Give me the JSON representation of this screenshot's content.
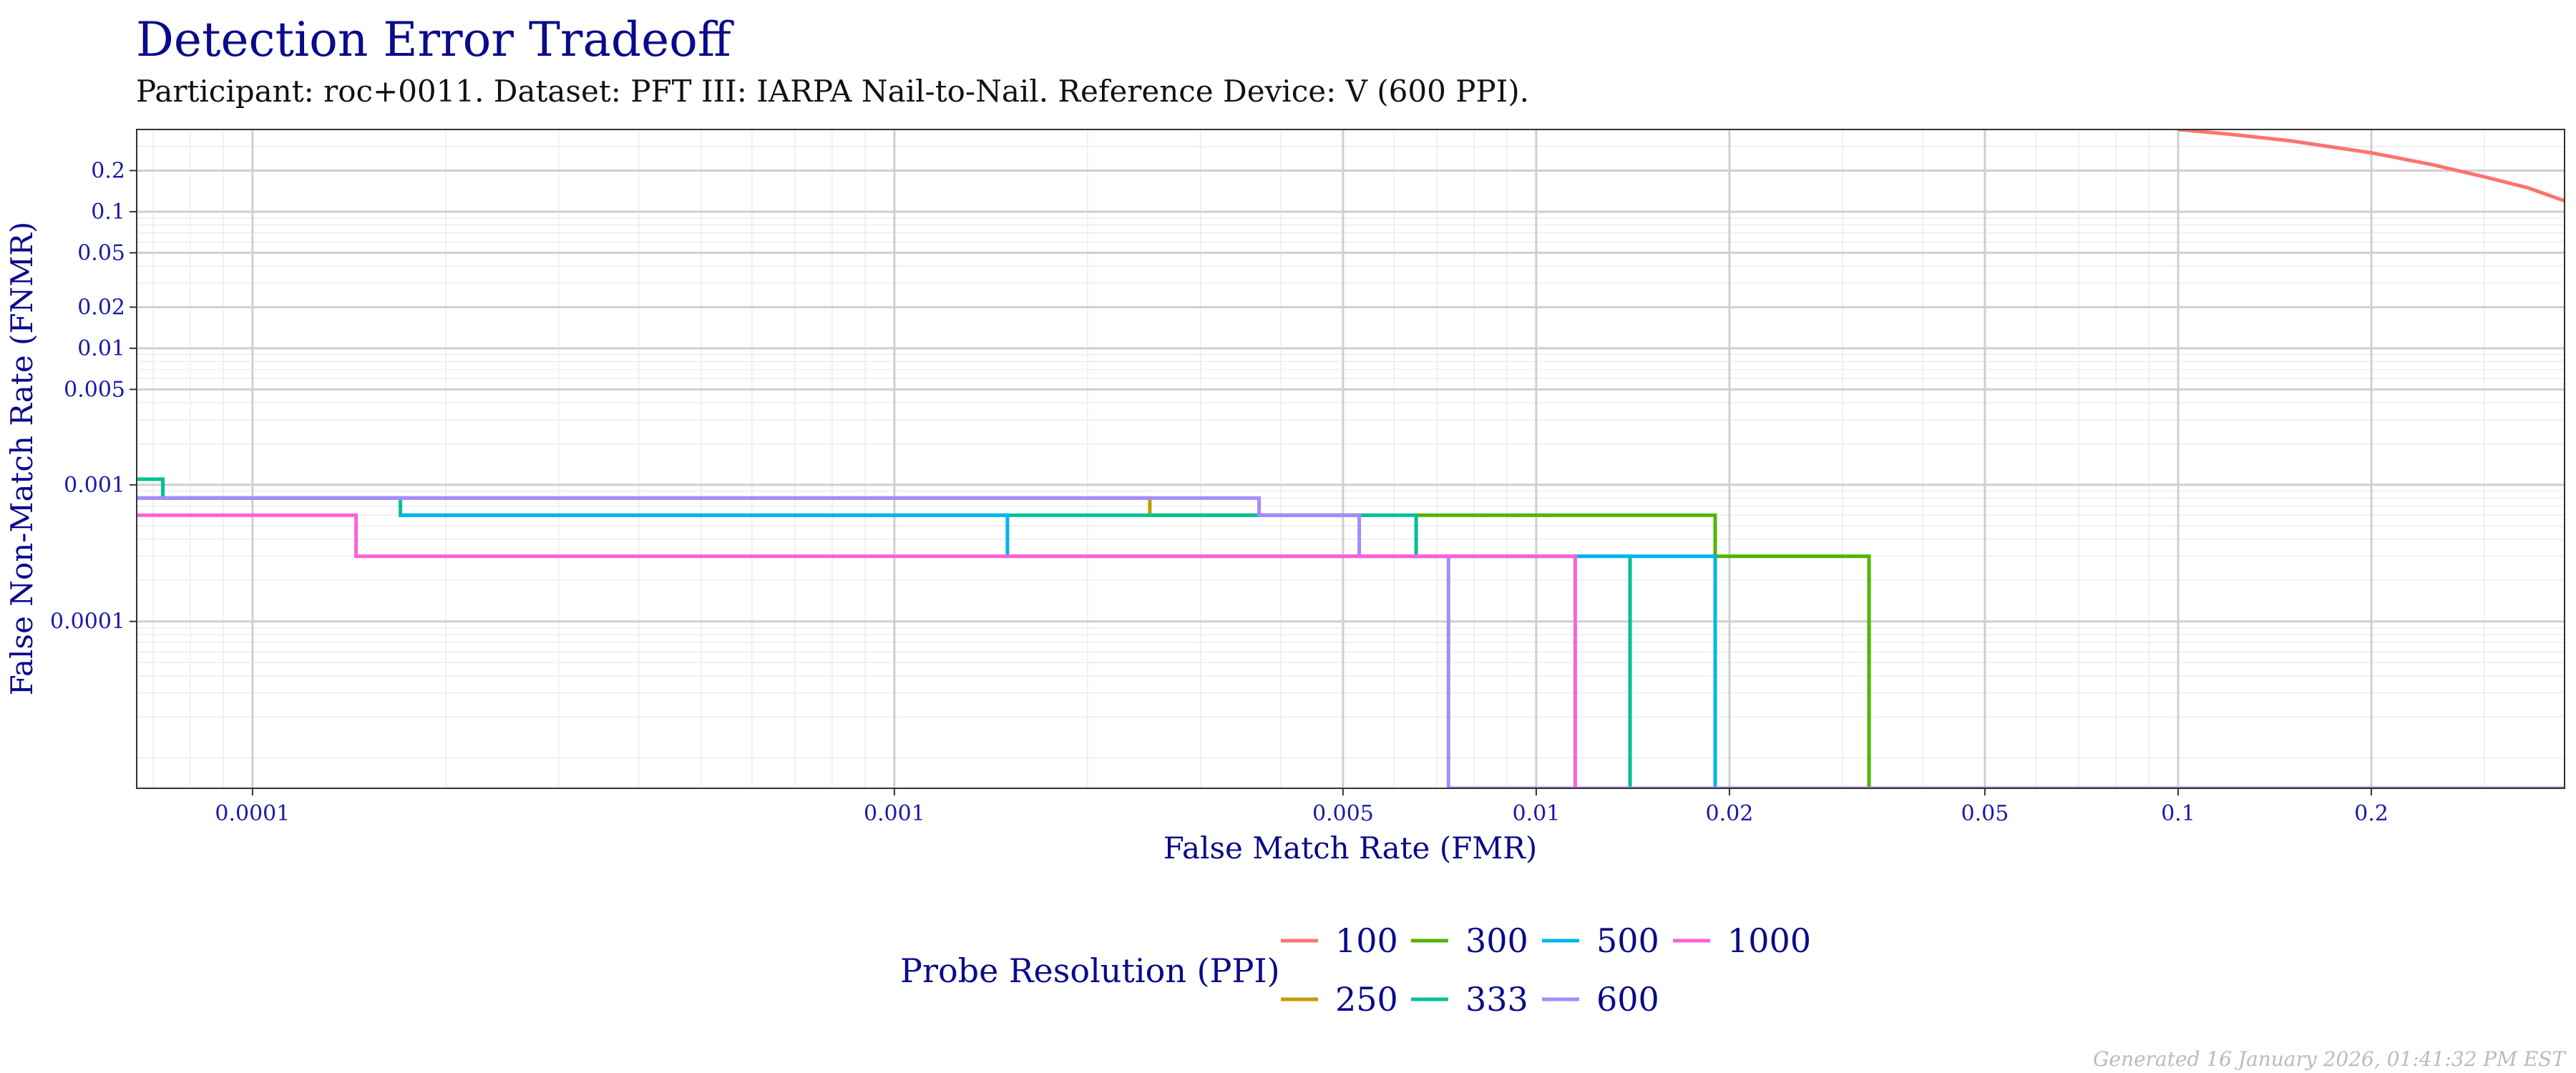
{
  "chart_data": {
    "type": "line",
    "title": "Detection Error Tradeoff",
    "subtitle": "Participant: roc+0011. Dataset: PFT III: IARPA Nail-to-Nail. Reference Device: V (600 PPI).",
    "xlabel": "False Match Rate (FMR)",
    "ylabel": "False Non-Match Rate (FNMR)",
    "x_scale": "log",
    "y_scale": "log",
    "xlim": [
      6.6e-05,
      0.4
    ],
    "ylim": [
      6e-06,
      0.4
    ],
    "x_ticks": [
      {
        "value": 0.0001,
        "label": "0.0001"
      },
      {
        "value": 0.001,
        "label": "0.001"
      },
      {
        "value": 0.005,
        "label": "0.005"
      },
      {
        "value": 0.01,
        "label": "0.01"
      },
      {
        "value": 0.02,
        "label": "0.02"
      },
      {
        "value": 0.05,
        "label": "0.05"
      },
      {
        "value": 0.1,
        "label": "0.1"
      },
      {
        "value": 0.2,
        "label": "0.2"
      }
    ],
    "y_ticks": [
      {
        "value": 0.2,
        "label": "0.2"
      },
      {
        "value": 0.1,
        "label": "0.1"
      },
      {
        "value": 0.05,
        "label": "0.05"
      },
      {
        "value": 0.02,
        "label": "0.02"
      },
      {
        "value": 0.01,
        "label": "0.01"
      },
      {
        "value": 0.005,
        "label": "0.005"
      },
      {
        "value": 0.001,
        "label": "0.001"
      },
      {
        "value": 0.0001,
        "label": "0.0001"
      }
    ],
    "grid": true,
    "legend_title": "Probe Resolution (PPI)",
    "legend_position": "bottom",
    "series": [
      {
        "name": "100",
        "color": "#F8766D",
        "points": [
          [
            0.1,
            0.4
          ],
          [
            0.12,
            0.37
          ],
          [
            0.15,
            0.33
          ],
          [
            0.2,
            0.27
          ],
          [
            0.25,
            0.22
          ],
          [
            0.3,
            0.18
          ],
          [
            0.35,
            0.15
          ],
          [
            0.4,
            0.12
          ]
        ]
      },
      {
        "name": "250",
        "color": "#C49A00",
        "points": [
          [
            6.6e-05,
            0.0008
          ],
          [
            0.0001,
            0.0008
          ],
          [
            0.0025,
            0.0008
          ],
          [
            0.0025,
            0.0006
          ],
          [
            0.004,
            0.0006
          ],
          [
            0.0055,
            0.0006
          ]
        ]
      },
      {
        "name": "300",
        "color": "#53B400",
        "points": [
          [
            0.0065,
            0.0006
          ],
          [
            0.019,
            0.0006
          ],
          [
            0.019,
            0.0003
          ],
          [
            0.033,
            0.0003
          ],
          [
            0.033,
            6e-06
          ]
        ]
      },
      {
        "name": "333",
        "color": "#00C094",
        "points": [
          [
            6.6e-05,
            0.0011
          ],
          [
            7.25e-05,
            0.0011
          ],
          [
            7.25e-05,
            0.0008
          ],
          [
            0.00017,
            0.0008
          ],
          [
            0.00017,
            0.0006
          ],
          [
            0.0065,
            0.0006
          ],
          [
            0.0065,
            0.0003
          ],
          [
            0.014,
            0.0003
          ],
          [
            0.014,
            6e-06
          ]
        ]
      },
      {
        "name": "500",
        "color": "#00B6EB",
        "points": [
          [
            0.00017,
            0.0006
          ],
          [
            0.0015,
            0.0006
          ],
          [
            0.0015,
            0.0003
          ],
          [
            0.019,
            0.0003
          ],
          [
            0.019,
            6e-06
          ]
        ]
      },
      {
        "name": "600",
        "color": "#A58AFF",
        "points": [
          [
            6.6e-05,
            0.0008
          ],
          [
            0.0037,
            0.0008
          ],
          [
            0.0037,
            0.0006
          ],
          [
            0.0053,
            0.0006
          ],
          [
            0.0053,
            0.0003
          ],
          [
            0.0073,
            0.0003
          ],
          [
            0.0073,
            6e-06
          ],
          [
            0.4,
            6e-06
          ]
        ]
      },
      {
        "name": "1000",
        "color": "#FB61D7",
        "points": [
          [
            6.6e-05,
            0.0006
          ],
          [
            0.000145,
            0.0006
          ],
          [
            0.000145,
            0.0003
          ],
          [
            0.0115,
            0.0003
          ],
          [
            0.0115,
            6e-06
          ]
        ]
      }
    ]
  },
  "footer": "Generated 16 January 2026, 01:41:32 PM EST"
}
